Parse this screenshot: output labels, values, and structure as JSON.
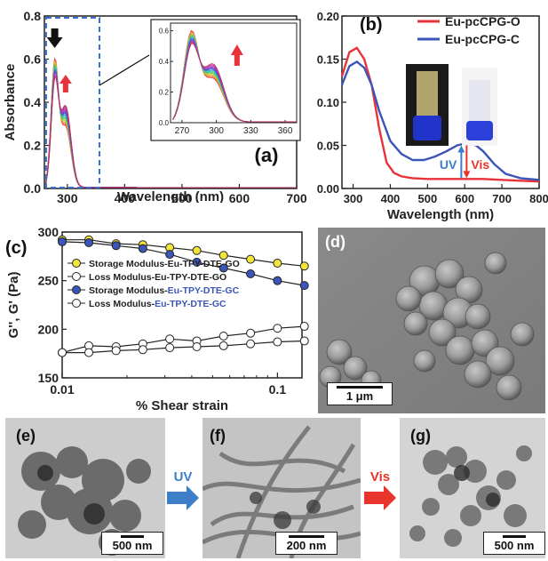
{
  "colors": {
    "red": "#e8333a",
    "blue": "#3b55b8",
    "yellow": "#f2e43a",
    "uv_arrow": "#3c7ec8",
    "vis_arrow": "#e8342a",
    "dashed_box": "#3a6fd0"
  },
  "chart_data": [
    {
      "id": "a",
      "type": "line",
      "panel_label": "(a)",
      "xlabel": "Wavelength (nm)",
      "ylabel": "Absorbance",
      "xlim": [
        260,
        700
      ],
      "ylim": [
        0,
        0.8
      ],
      "xticks": [
        300,
        400,
        500,
        600,
        700
      ],
      "yticks": [
        0.0,
        0.2,
        0.4,
        0.6,
        0.8
      ],
      "series_envelope": {
        "name": "",
        "peak1_x": 278,
        "peak1_y_range": [
          0.53,
          0.64
        ],
        "peak2_x": 297,
        "peak2_y_range": [
          0.33,
          0.44
        ],
        "cutoff_x": 355
      },
      "inset": {
        "xlim": [
          260,
          370
        ],
        "ylim": [
          0,
          0.65
        ],
        "xticks": [
          270,
          300,
          330,
          360
        ],
        "yticks": [
          0.0,
          0.2,
          0.4,
          0.6
        ]
      },
      "annotations": [
        "black arrow down at 278 nm",
        "red arrow up at 297 nm"
      ]
    },
    {
      "id": "b",
      "type": "line",
      "panel_label": "(b)",
      "xlabel": "Wavelength (nm)",
      "ylabel": "",
      "xlim": [
        270,
        800
      ],
      "ylim": [
        0,
        0.2
      ],
      "xticks": [
        300,
        400,
        500,
        600,
        700,
        800
      ],
      "yticks": [
        0.0,
        0.05,
        0.1,
        0.15,
        0.2
      ],
      "series": [
        {
          "name": "Eu-pcCPG-O",
          "color": "#e8333a",
          "x": [
            270,
            290,
            310,
            330,
            350,
            370,
            390,
            410,
            430,
            460,
            500,
            550,
            600,
            650,
            700,
            750,
            800
          ],
          "y": [
            0.13,
            0.158,
            0.163,
            0.15,
            0.12,
            0.07,
            0.03,
            0.018,
            0.014,
            0.012,
            0.011,
            0.011,
            0.011,
            0.011,
            0.01,
            0.009,
            0.008
          ]
        },
        {
          "name": "Eu-pcCPG-C",
          "color": "#3b55b8",
          "x": [
            270,
            290,
            310,
            330,
            350,
            370,
            400,
            430,
            460,
            490,
            520,
            550,
            580,
            610,
            630,
            650,
            680,
            710,
            750,
            800
          ],
          "y": [
            0.12,
            0.142,
            0.147,
            0.14,
            0.12,
            0.09,
            0.055,
            0.04,
            0.033,
            0.033,
            0.037,
            0.043,
            0.05,
            0.053,
            0.05,
            0.043,
            0.028,
            0.017,
            0.012,
            0.01
          ]
        }
      ],
      "legend": "top-right",
      "uv_label": "UV",
      "vis_label": "Vis"
    },
    {
      "id": "c",
      "type": "line",
      "panel_label": "(c)",
      "xlabel": "% Shear strain",
      "ylabel": "G'', G' (Pa)",
      "xscale": "log",
      "xlim": [
        0.01,
        0.13
      ],
      "ylim": [
        150,
        300
      ],
      "xticks": [
        0.01,
        0.1
      ],
      "xtick_labels": [
        "0.01",
        "0.1"
      ],
      "yticks": [
        150,
        200,
        250,
        300
      ],
      "x": [
        0.01,
        0.0133,
        0.0178,
        0.0237,
        0.0316,
        0.0422,
        0.0562,
        0.075,
        0.1,
        0.1334
      ],
      "series": [
        {
          "name": "Storage Modulus-Eu-TPY-DTE-GO",
          "color": "#f2e43a",
          "filled": true,
          "y": [
            292,
            292,
            288,
            287,
            284,
            281,
            276,
            272,
            268,
            265
          ]
        },
        {
          "name": "Loss Modulus-Eu-TPY-DTE-GO",
          "color": "#ffffff",
          "filled": false,
          "y": [
            176,
            183,
            182,
            185,
            190,
            188,
            193,
            196,
            201,
            203
          ]
        },
        {
          "name": "Storage Modulus-Eu-TPY-DTE-GC",
          "color": "#3b55b8",
          "filled": true,
          "y": [
            290,
            289,
            286,
            283,
            277,
            269,
            263,
            257,
            250,
            245
          ]
        },
        {
          "name": "Loss Modulus-Eu-TPY-DTE-GC",
          "color": "#ffffff",
          "filled": false,
          "y": [
            176,
            176,
            178,
            179,
            181,
            182,
            183,
            185,
            187,
            188
          ]
        }
      ],
      "legend_name_prefix": [
        "Storage Modulus-Eu-TPY-DTE-GO",
        "Loss Modulus-Eu-TPY-DTE-GO",
        "Storage Modulus-",
        "Loss Modulus-"
      ],
      "legend_name_suffix": [
        "",
        "",
        "Eu-TPY-DTE-GC",
        "Eu-TPY-DTE-GC"
      ]
    }
  ],
  "panels": {
    "d": {
      "label": "(d)",
      "scale": "1 μm"
    },
    "e": {
      "label": "(e)",
      "scale": "500 nm"
    },
    "f": {
      "label": "(f)",
      "scale": "200 nm"
    },
    "g": {
      "label": "(g)",
      "scale": "500 nm"
    },
    "uv_arrow_label": "UV",
    "vis_arrow_label": "Vis"
  }
}
